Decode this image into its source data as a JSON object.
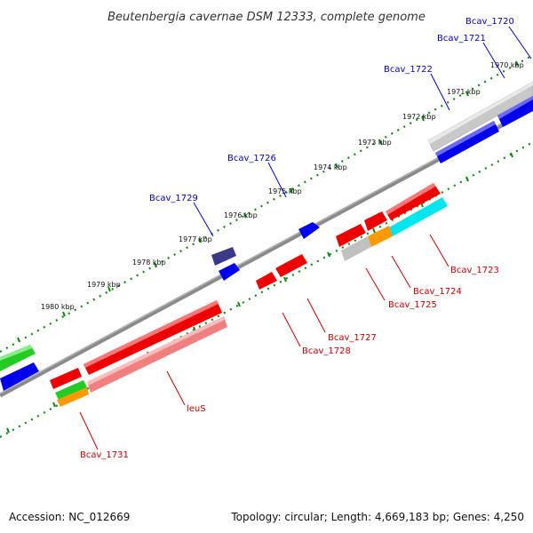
{
  "title": "Beutenbergia cavernae DSM 12333, complete genome",
  "footer": {
    "accession": "Accession: NC_012669",
    "summary": "Topology: circular; Length: 4,669,183 bp; Genes: 4,250"
  },
  "scale_labels": [
    "1970 kbp",
    "1971 kbp",
    "1972 kbp",
    "1973 kbp",
    "1974 kbp",
    "1975 kbp",
    "1976 kbp",
    "1977 kbp",
    "1978 kbp",
    "1979 kbp",
    "1980 kbp"
  ],
  "genes_forward": [
    "Bcav_1720",
    "Bcav_1721",
    "Bcav_1722",
    "Bcav_1726",
    "Bcav_1729"
  ],
  "genes_reverse": [
    "Bcav_1723",
    "Bcav_1724",
    "Bcav_1725",
    "Bcav_1727",
    "Bcav_1728",
    "leuS",
    "Bcav_1731"
  ],
  "colors": {
    "forward_label": "#0000cc",
    "reverse_label": "#cc0000",
    "cds_red": "#ff0000",
    "cds_blue": "#0000ff",
    "cds_pink": "#f08080",
    "cds_green": "#22cc22",
    "cds_orange": "#ff9900",
    "cds_cyan": "#00e5ee",
    "cds_grey": "#c0c0c0",
    "cds_navy": "#3a3a88",
    "backbone": "#777777",
    "tick": "#118811"
  }
}
